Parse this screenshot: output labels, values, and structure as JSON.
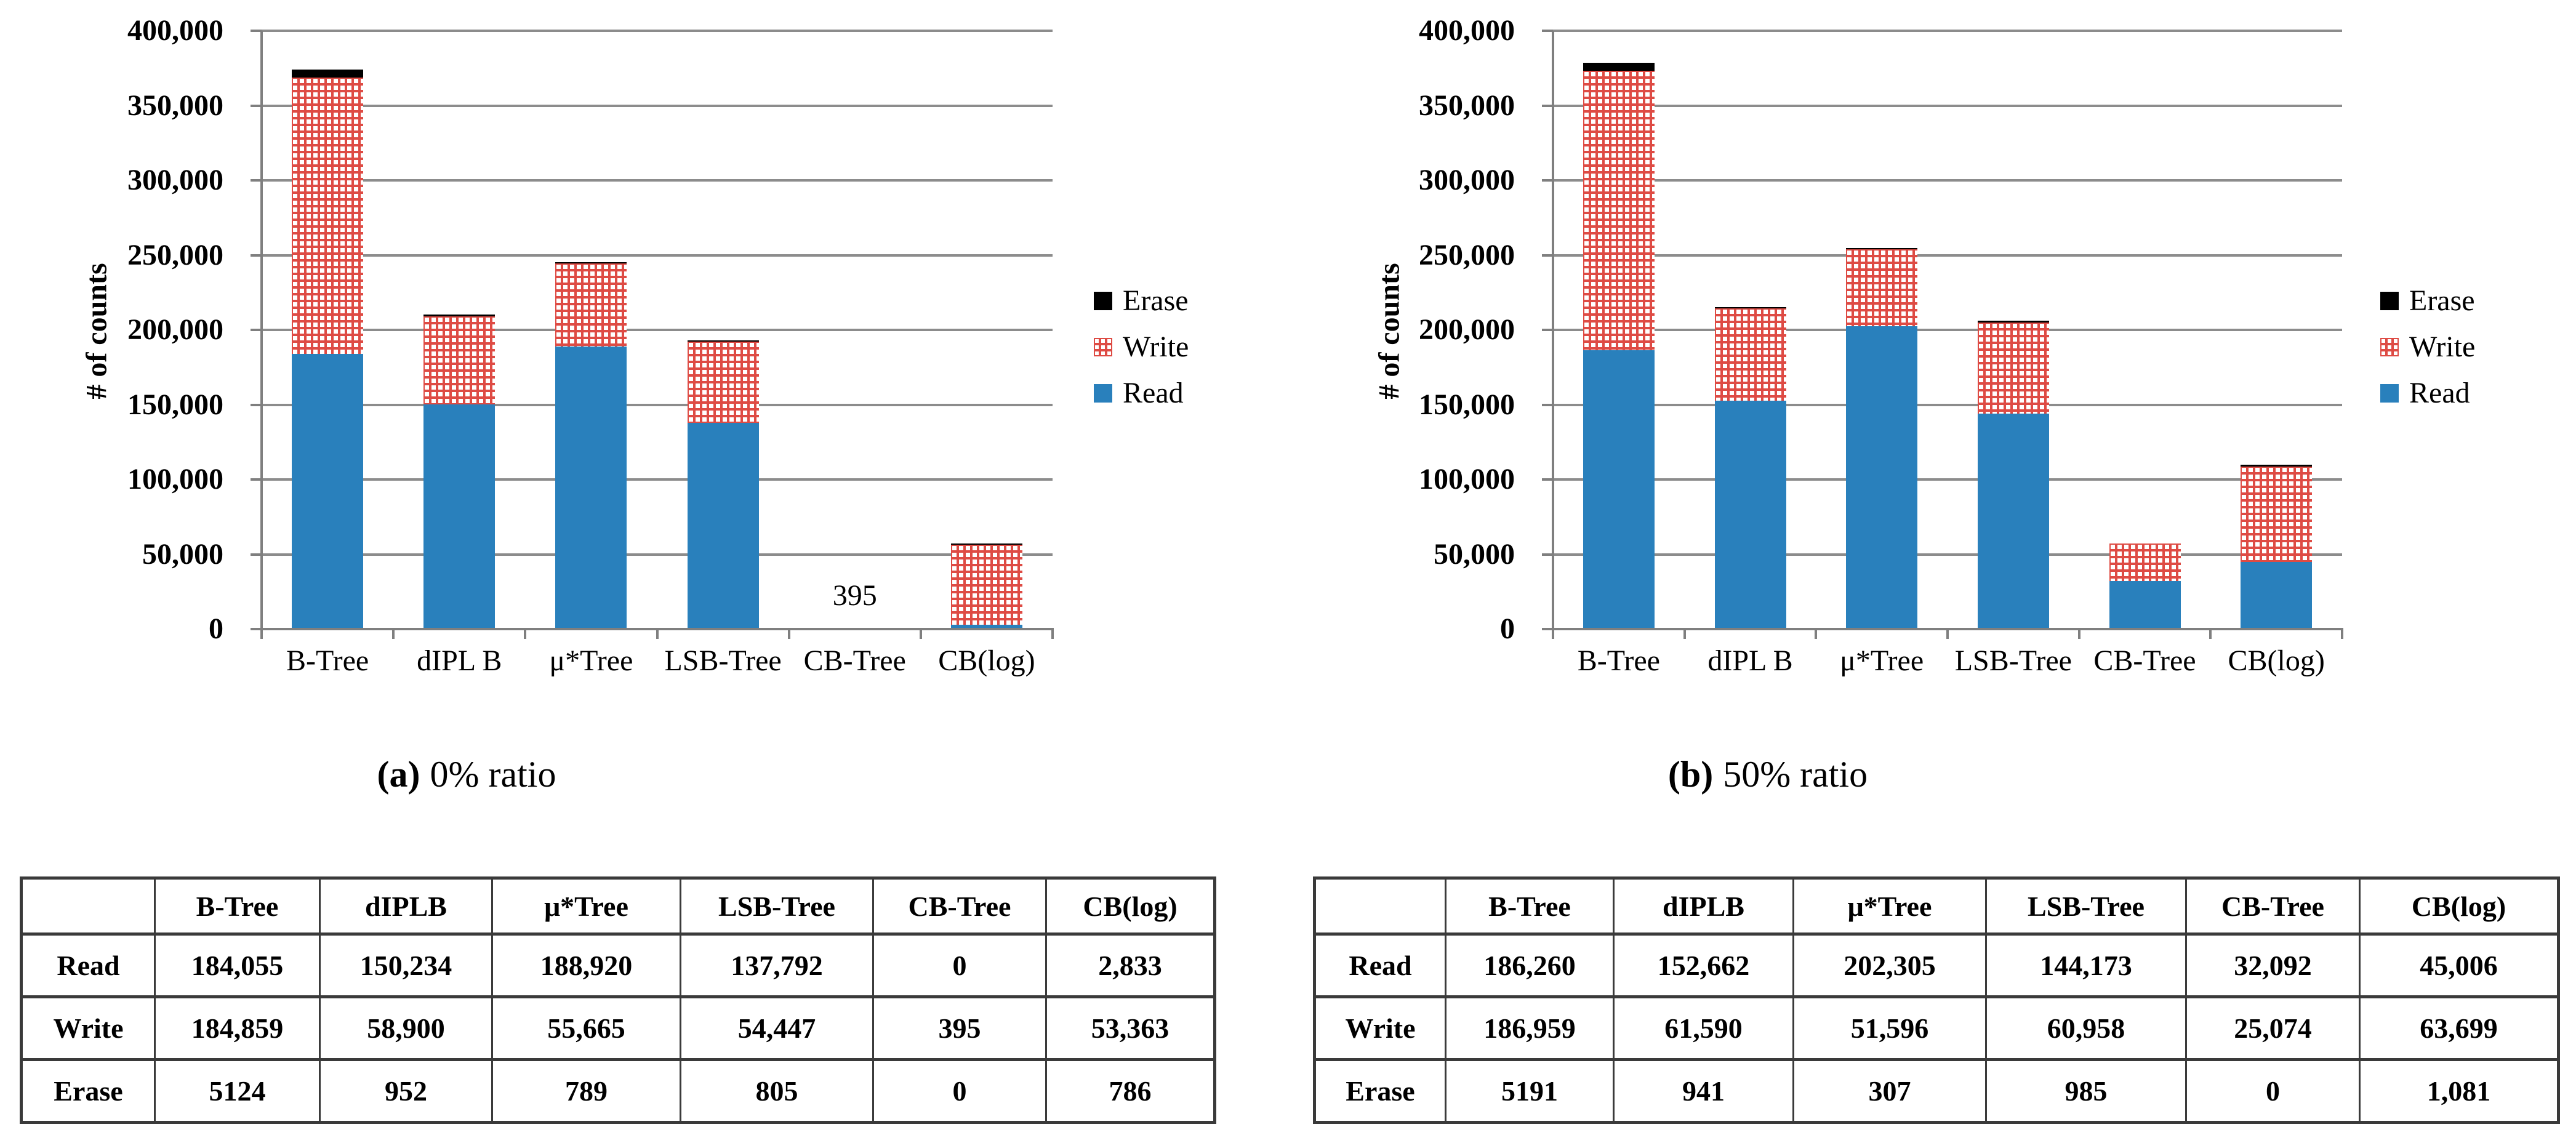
{
  "chart_data": [
    {
      "type": "bar",
      "stacked": true,
      "caption_label": "(a)",
      "caption_text": "0% ratio",
      "ylabel": "# of counts",
      "ylim": [
        0,
        400000
      ],
      "ytick_step": 50000,
      "grid": true,
      "legend_position": "right",
      "categories": [
        "B-Tree",
        "dIPL B",
        "μ*Tree",
        "LSB-Tree",
        "CB-Tree",
        "CB(log)"
      ],
      "series": [
        {
          "name": "Read",
          "color": "#2980bc",
          "values": [
            184055,
            150234,
            188920,
            137792,
            0,
            2833
          ]
        },
        {
          "name": "Write",
          "color": "#de4b44",
          "pattern": "white-squares",
          "values": [
            184859,
            58900,
            55665,
            54447,
            395,
            53363
          ]
        },
        {
          "name": "Erase",
          "color": "#000000",
          "values": [
            5124,
            952,
            789,
            805,
            0,
            786
          ]
        }
      ],
      "legend": [
        "Erase",
        "Write",
        "Read"
      ],
      "annotations": [
        {
          "text": "395",
          "category_index": 4
        }
      ]
    },
    {
      "type": "bar",
      "stacked": true,
      "caption_label": "(b)",
      "caption_text": "50% ratio",
      "ylabel": "# of counts",
      "ylim": [
        0,
        400000
      ],
      "ytick_step": 50000,
      "grid": true,
      "legend_position": "right",
      "categories": [
        "B-Tree",
        "dIPL B",
        "μ*Tree",
        "LSB-Tree",
        "CB-Tree",
        "CB(log)"
      ],
      "series": [
        {
          "name": "Read",
          "color": "#2980bc",
          "values": [
            186260,
            152662,
            202305,
            144173,
            32092,
            45006
          ]
        },
        {
          "name": "Write",
          "color": "#de4b44",
          "pattern": "white-squares",
          "values": [
            186959,
            61590,
            51596,
            60958,
            25074,
            63699
          ]
        },
        {
          "name": "Erase",
          "color": "#000000",
          "values": [
            5191,
            941,
            307,
            985,
            0,
            1081
          ]
        }
      ],
      "legend": [
        "Erase",
        "Write",
        "Read"
      ],
      "annotations": []
    }
  ],
  "tables": [
    {
      "headers": [
        "",
        "B-Tree",
        "dIPLB",
        "μ*Tree",
        "LSB-Tree",
        "CB-Tree",
        "CB(log)"
      ],
      "rows": [
        [
          "Read",
          "184,055",
          "150,234",
          "188,920",
          "137,792",
          "0",
          "2,833"
        ],
        [
          "Write",
          "184,859",
          "58,900",
          "55,665",
          "54,447",
          "395",
          "53,363"
        ],
        [
          "Erase",
          "5124",
          "952",
          "789",
          "805",
          "0",
          "786"
        ]
      ]
    },
    {
      "headers": [
        "",
        "B-Tree",
        "dIPLB",
        "μ*Tree",
        "LSB-Tree",
        "CB-Tree",
        "CB(log)"
      ],
      "rows": [
        [
          "Read",
          "186,260",
          "152,662",
          "202,305",
          "144,173",
          "32,092",
          "45,006"
        ],
        [
          "Write",
          "186,959",
          "61,590",
          "51,596",
          "60,958",
          "25,074",
          "63,699"
        ],
        [
          "Erase",
          "5191",
          "941",
          "307",
          "985",
          "0",
          "1,081"
        ]
      ]
    }
  ],
  "colors": {
    "read": "#2980bc",
    "write": "#de4b44",
    "erase": "#000000",
    "grid": "#8c8c8c",
    "axis": "#7f7f7f"
  }
}
